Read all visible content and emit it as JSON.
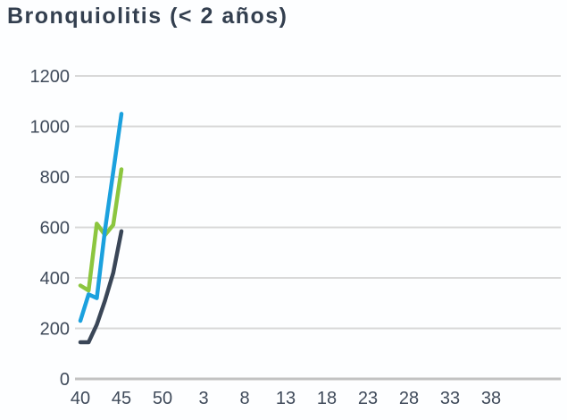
{
  "chart_data": {
    "type": "line",
    "title": "Bronquiolitis (< 2 años)",
    "x_axis": {
      "unit": "epidemiological-week",
      "start_week": 40,
      "weeks_in_year": 52,
      "total_weeks_shown": 51,
      "tick_step_weeks": 5,
      "tick_labels": [
        "40",
        "45",
        "50",
        "3",
        "8",
        "13",
        "18",
        "23",
        "28",
        "33",
        "38"
      ]
    },
    "y_axis": {
      "min": 0,
      "max": 1200,
      "tick_step": 200,
      "tick_labels": [
        "0",
        "200",
        "400",
        "600",
        "800",
        "1000",
        "1200"
      ]
    },
    "grid": "horizontal-only",
    "legend": "none",
    "series": [
      {
        "name": "green-line",
        "color": "#8cc63f",
        "weeks": [
          40,
          41,
          42,
          43,
          44,
          45
        ],
        "values": [
          370,
          350,
          615,
          570,
          610,
          830
        ]
      },
      {
        "name": "dark-navy-line",
        "color": "#3a4657",
        "weeks": [
          40,
          41,
          42,
          43,
          44,
          45
        ],
        "values": [
          145,
          145,
          215,
          310,
          420,
          585
        ]
      },
      {
        "name": "blue-line",
        "color": "#1ba1de",
        "weeks": [
          40,
          41,
          42,
          43,
          44,
          45
        ],
        "values": [
          230,
          335,
          320,
          590,
          820,
          1050
        ]
      }
    ],
    "colors": {
      "grid_line": "#d9d9d9",
      "axis_base_line": "#c2c2c2",
      "tick_text": "#3f4a5a",
      "title_text": "#333f4f",
      "background": "#fdfeff"
    }
  }
}
